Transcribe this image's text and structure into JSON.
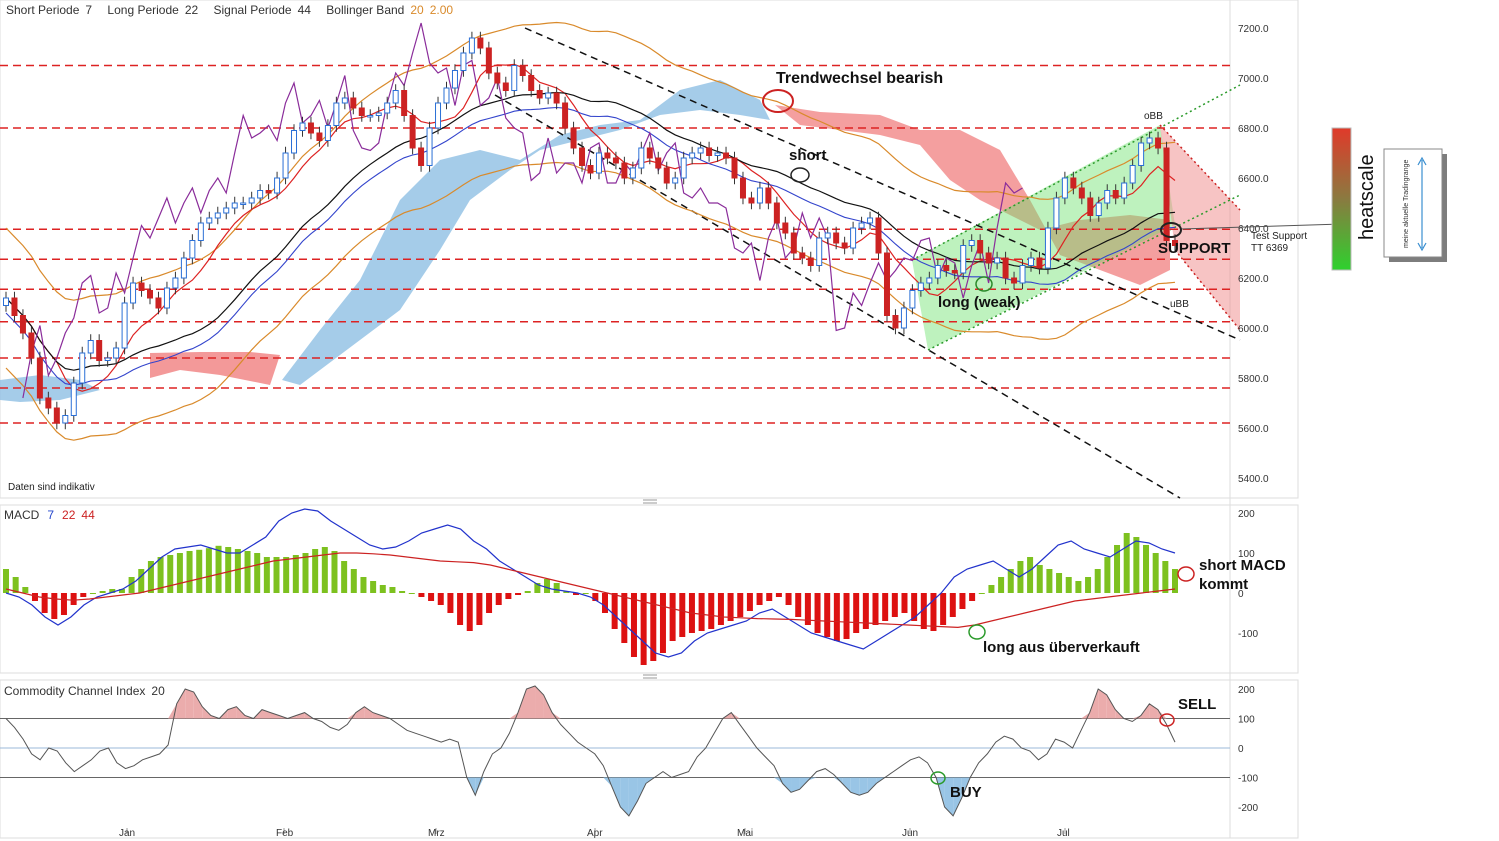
{
  "header": {
    "short_label": "Short Periode",
    "short_value": "7",
    "long_label": "Long Periode",
    "long_value": "22",
    "signal_label": "Signal Periode",
    "signal_value": "44",
    "bb_label": "Bollinger Band",
    "bb_period": "20",
    "bb_dev": "2.00"
  },
  "footer_note": "Daten sind indikativ",
  "months": [
    "Jan",
    "Feb",
    "Mrz",
    "Apr",
    "Mai",
    "Jun",
    "Jul"
  ],
  "price_ticks": [
    "5400.0",
    "5600.0",
    "5800.0",
    "6000.0",
    "6200.0",
    "6400.0",
    "6600.0",
    "6800.0",
    "7000.0",
    "7200.0"
  ],
  "macd_panel": {
    "label": "MACD",
    "p1": "7",
    "p2": "22",
    "p3": "44",
    "ticks": [
      "-100",
      "0",
      "100",
      "200"
    ]
  },
  "cci_panel": {
    "label": "Commodity Channel Index",
    "period": "20",
    "ticks": [
      "-200",
      "-100",
      "0",
      "100",
      "200"
    ]
  },
  "annotations": {
    "trend": "Trendwechsel bearish",
    "short": "short",
    "obb": "oBB",
    "ubb": "uBB",
    "test_support": "Test Support",
    "tt": "TT 6369",
    "support": "SUPPORT",
    "long_weak": "long (weak)",
    "short_macd_1": "short MACD",
    "short_macd_2": "kommt",
    "long_ueber": "long aus überverkauft",
    "sell": "SELL",
    "buy": "BUY",
    "heatscale": "heatscale",
    "tradingrange": "meine aktuelle Tradingrange"
  },
  "colors": {
    "up": "#2a6fd6",
    "down": "#cc2222",
    "macd_pos": "#7dc11f",
    "macd_neg": "#dd1111",
    "cloud_bull": "#8ebfe3",
    "cloud_bear": "#f07f7f"
  },
  "chart_data": [
    {
      "type": "candlestick",
      "title": "",
      "indicators": [
        "Bollinger Band 20 2.00",
        "Ichimoku cloud",
        "moving averages"
      ],
      "ylim": [
        5350,
        7250
      ],
      "x_labels": [
        "Jan",
        "Feb",
        "Mrz",
        "Apr",
        "Mai",
        "Jun",
        "Jul"
      ],
      "close": [
        6120,
        6050,
        5980,
        5880,
        5720,
        5680,
        5620,
        5650,
        5780,
        5900,
        5950,
        5870,
        5880,
        5920,
        6100,
        6180,
        6150,
        6120,
        6080,
        6160,
        6200,
        6280,
        6350,
        6420,
        6440,
        6460,
        6480,
        6500,
        6500,
        6520,
        6550,
        6540,
        6600,
        6700,
        6790,
        6820,
        6780,
        6750,
        6810,
        6900,
        6920,
        6880,
        6850,
        6850,
        6860,
        6900,
        6950,
        6850,
        6720,
        6650,
        6800,
        6900,
        6960,
        7030,
        7100,
        7160,
        7120,
        7020,
        6980,
        6950,
        7050,
        7010,
        6950,
        6920,
        6940,
        6900,
        6800,
        6720,
        6650,
        6620,
        6700,
        6680,
        6660,
        6600,
        6640,
        6720,
        6680,
        6640,
        6580,
        6600,
        6680,
        6700,
        6720,
        6690,
        6700,
        6680,
        6600,
        6520,
        6500,
        6560,
        6500,
        6420,
        6380,
        6300,
        6280,
        6250,
        6360,
        6380,
        6340,
        6320,
        6400,
        6420,
        6440,
        6300,
        6050,
        6000,
        6080,
        6150,
        6180,
        6200,
        6250,
        6230,
        6220,
        6330,
        6350,
        6300,
        6260,
        6280,
        6200,
        6180,
        6250,
        6280,
        6240,
        6400,
        6520,
        6600,
        6560,
        6520,
        6450,
        6500,
        6550,
        6520,
        6580,
        6650,
        6740,
        6760,
        6720,
        6350,
        6330
      ]
    },
    {
      "type": "bar",
      "title": "MACD 7 22 44",
      "ylim": [
        -200,
        220
      ],
      "series": [
        {
          "name": "Histogram",
          "values": [
            60,
            40,
            15,
            -20,
            -50,
            -65,
            -55,
            -30,
            -10,
            0,
            5,
            10,
            10,
            40,
            60,
            80,
            90,
            95,
            100,
            105,
            108,
            112,
            118,
            115,
            110,
            105,
            100,
            90,
            90,
            90,
            95,
            100,
            110,
            115,
            105,
            80,
            60,
            40,
            30,
            20,
            15,
            5,
            0,
            -10,
            -20,
            -30,
            -50,
            -80,
            -95,
            -80,
            -50,
            -30,
            -15,
            -5,
            5,
            25,
            35,
            25,
            5,
            -5,
            0,
            -20,
            -50,
            -90,
            -125,
            -160,
            -180,
            -170,
            -150,
            -120,
            -110,
            -100,
            -95,
            -90,
            -80,
            -70,
            -60,
            -45,
            -30,
            -20,
            -10,
            -30,
            -60,
            -80,
            -100,
            -110,
            -120,
            -115,
            -100,
            -90,
            -80,
            -70,
            -60,
            -50,
            -70,
            -90,
            -95,
            -80,
            -60,
            -40,
            -20,
            0,
            20,
            40,
            60,
            80,
            90,
            70,
            60,
            50,
            40,
            30,
            40,
            60,
            90,
            120,
            150,
            140,
            120,
            100,
            80,
            60
          ]
        },
        {
          "name": "MACD",
          "values": [
            0,
            -10,
            -30,
            -60,
            -80,
            -60,
            -30,
            -10,
            0,
            10,
            30,
            60,
            90,
            110,
            115,
            120,
            110,
            100,
            100,
            120,
            140,
            180,
            200,
            210,
            205,
            180,
            160,
            140,
            120,
            110,
            115,
            130,
            150,
            160,
            170,
            160,
            130,
            110,
            80,
            60,
            40,
            20,
            10,
            5,
            0,
            -10,
            -30,
            -60,
            -90,
            -120,
            -150,
            -160,
            -150,
            -120,
            -100,
            -90,
            -80,
            -70,
            -50,
            -40,
            -60,
            -80,
            -100,
            -110,
            -120,
            -130,
            -140,
            -120,
            -100,
            -80,
            -60,
            -30,
            0,
            40,
            60,
            70,
            80,
            60,
            40,
            60,
            90,
            120,
            130,
            110,
            100,
            90,
            110,
            130,
            125,
            110,
            100
          ]
        },
        {
          "name": "Signal",
          "values": [
            10,
            0,
            -10,
            -15,
            -18,
            -15,
            -10,
            -5,
            0,
            10,
            20,
            30,
            40,
            50,
            60,
            70,
            80,
            85,
            90,
            95,
            100,
            100,
            98,
            95,
            90,
            85,
            80,
            78,
            76,
            70,
            60,
            50,
            40,
            30,
            20,
            10,
            0,
            -10,
            -20,
            -30,
            -40,
            -50,
            -55,
            -60,
            -62,
            -64,
            -65,
            -66,
            -68,
            -70,
            -72,
            -74,
            -76,
            -78,
            -80,
            -82,
            -84,
            -86,
            -80,
            -70,
            -60,
            -50,
            -40,
            -30,
            -20,
            -15,
            -10,
            -5,
            0,
            5,
            10
          ]
        }
      ]
    },
    {
      "type": "line",
      "title": "Commodity Channel Index 20",
      "ylim": [
        -250,
        220
      ],
      "series": [
        {
          "name": "CCI",
          "values": [
            100,
            70,
            30,
            -20,
            -40,
            0,
            -10,
            -50,
            -80,
            -60,
            -40,
            -10,
            0,
            -50,
            -70,
            -60,
            -40,
            -30,
            -20,
            10,
            150,
            200,
            190,
            140,
            110,
            100,
            130,
            140,
            110,
            100,
            130,
            120,
            110,
            100,
            110,
            120,
            100,
            90,
            70,
            60,
            80,
            120,
            140,
            120,
            110,
            100,
            80,
            60,
            50,
            40,
            30,
            20,
            30,
            20,
            -100,
            -160,
            -80,
            -20,
            0,
            50,
            120,
            200,
            210,
            180,
            120,
            80,
            50,
            20,
            0,
            -20,
            -60,
            -130,
            -200,
            -230,
            -180,
            -120,
            -100,
            -80,
            -100,
            -90,
            -80,
            -30,
            0,
            50,
            100,
            120,
            80,
            40,
            0,
            -30,
            -60,
            -120,
            -150,
            -140,
            -110,
            -80,
            -70,
            -90,
            -120,
            -150,
            -160,
            -150,
            -120,
            -100,
            -80,
            -60,
            -40,
            -30,
            -50,
            -100,
            -200,
            -230,
            -170,
            -100,
            -50,
            -20,
            20,
            40,
            30,
            0,
            -10,
            -40,
            -20,
            30,
            20,
            0,
            60,
            120,
            200,
            180,
            130,
            100,
            90,
            110,
            150,
            130,
            80,
            20
          ]
        }
      ]
    }
  ]
}
